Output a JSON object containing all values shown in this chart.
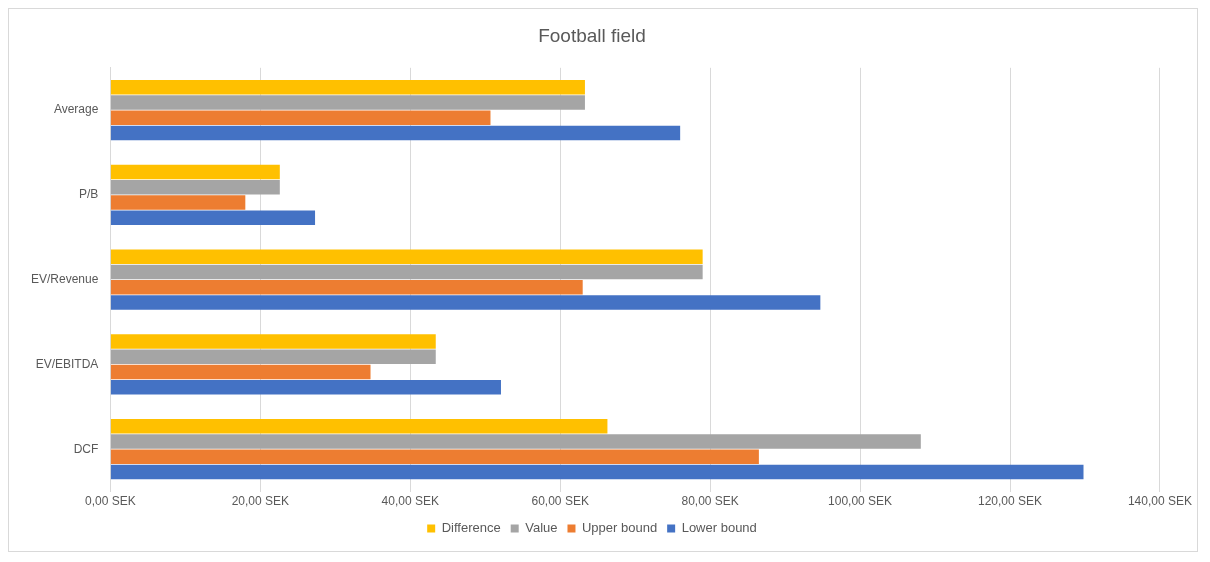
{
  "chart_data": {
    "type": "bar",
    "orientation": "horizontal",
    "title": "Football field",
    "categories": [
      "Average",
      "P/B",
      "EV/Revenue",
      "EV/EBITDA",
      "DCF"
    ],
    "series": [
      {
        "name": "Difference",
        "color": "#ffc000",
        "values": [
          63.3,
          22.6,
          79.0,
          43.4,
          66.3
        ]
      },
      {
        "name": "Value",
        "color": "#a5a5a5",
        "values": [
          63.3,
          22.6,
          79.0,
          43.4,
          108.1
        ]
      },
      {
        "name": "Upper bound",
        "color": "#ed7d31",
        "values": [
          50.7,
          18.0,
          63.0,
          34.7,
          86.5
        ]
      },
      {
        "name": "Lower bound",
        "color": "#4472c4",
        "values": [
          76.0,
          27.3,
          94.7,
          52.1,
          129.8
        ]
      }
    ],
    "xlim": [
      0,
      140
    ],
    "xticks": [
      {
        "value": 0,
        "label": "0,00 SEK"
      },
      {
        "value": 20,
        "label": "20,00 SEK"
      },
      {
        "value": 40,
        "label": "40,00 SEK"
      },
      {
        "value": 60,
        "label": "60,00 SEK"
      },
      {
        "value": 80,
        "label": "80,00 SEK"
      },
      {
        "value": 100,
        "label": "100,00 SEK"
      },
      {
        "value": 120,
        "label": "120,00 SEK"
      },
      {
        "value": 140,
        "label": "140,00 SEK"
      }
    ],
    "grid": "x",
    "legend": "bottom"
  }
}
